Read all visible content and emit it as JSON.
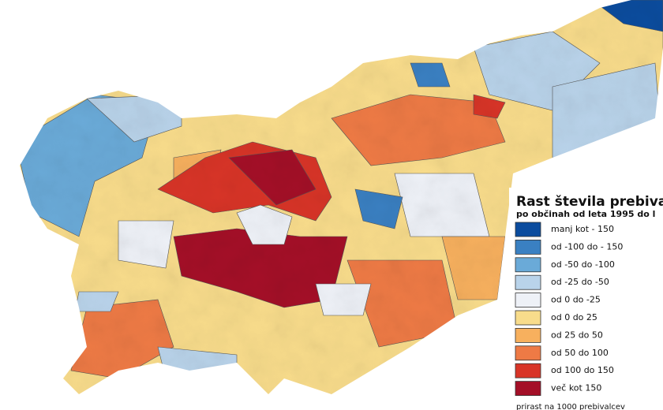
{
  "legend": {
    "title": "Rast števila prebiva",
    "subtitle": "po občinah od leta 1995 do l",
    "items": [
      {
        "label": "manj kot - 150",
        "color": "#0b4c9e"
      },
      {
        "label": "od -100 do - 150",
        "color": "#3a80c2"
      },
      {
        "label": "od -50 do -100",
        "color": "#6aaad8"
      },
      {
        "label": "od -25 do -50",
        "color": "#b9d3ea"
      },
      {
        "label": "od 0 do -25",
        "color": "#eef1f7"
      },
      {
        "label": "od 0 do 25",
        "color": "#f8dc8b"
      },
      {
        "label": "od 25 do 50",
        "color": "#f7b05e"
      },
      {
        "label": "od 50 do 100",
        "color": "#ee7a45"
      },
      {
        "label": "od 100 do 150",
        "color": "#d83427"
      },
      {
        "label": "več kot 150",
        "color": "#a40f27"
      }
    ],
    "note": "prirast na 1000 prebivalcev"
  }
}
